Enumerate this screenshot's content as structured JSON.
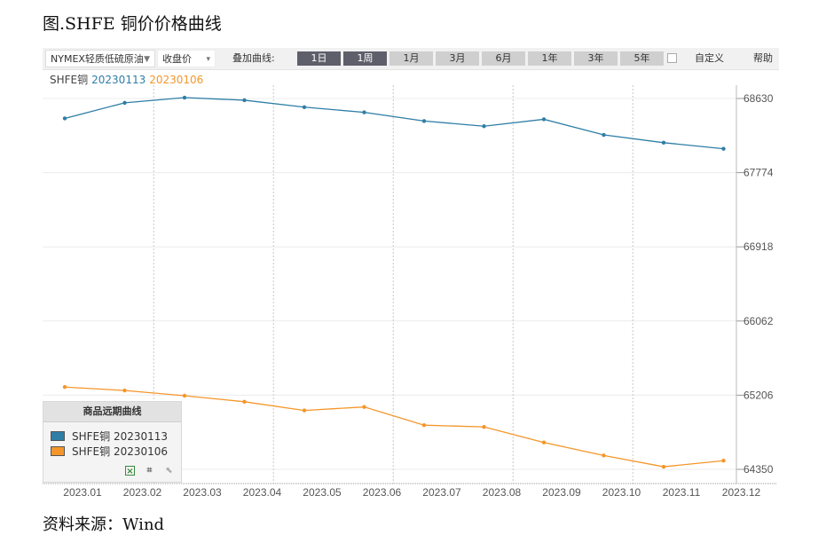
{
  "figure": {
    "title": "图.SHFE 铜价价格曲线",
    "source": "资料来源：Wind"
  },
  "toolbar": {
    "commodity": "NYMEX轻质低硫原油",
    "price_type": "收盘价",
    "overlay_label": "叠加曲线:",
    "periods": [
      "1日",
      "1周",
      "1月",
      "3月",
      "6月",
      "1年",
      "3年",
      "5年"
    ],
    "active_periods": [
      "1日",
      "1周"
    ],
    "custom_label": "自定义",
    "help_label": "帮助"
  },
  "legend_top": {
    "prefix": "SHFE铜",
    "series1": "20230113",
    "series2": "20230106"
  },
  "legend_box": {
    "title": "商品远期曲线",
    "items": [
      "SHFE铜 20230113",
      "SHFE铜 20230106"
    ],
    "icons": [
      "excel-icon",
      "crop-icon",
      "cursor-icon"
    ]
  },
  "colors": {
    "series1": "#2e7ea6",
    "series2": "#f5962a",
    "grid": "#ececec",
    "axis_text": "#555555"
  },
  "chart_data": {
    "type": "line",
    "title": "",
    "xlabel": "",
    "ylabel": "",
    "categories": [
      "2023.01",
      "2023.02",
      "2023.03",
      "2023.04",
      "2023.05",
      "2023.06",
      "2023.07",
      "2023.08",
      "2023.09",
      "2023.10",
      "2023.11",
      "2023.12"
    ],
    "yticks": [
      64350,
      65206,
      66062,
      66918,
      67774,
      68630
    ],
    "ylim": [
      64350,
      68630
    ],
    "grid": true,
    "legend": "top-left",
    "series": [
      {
        "name": "SHFE铜 20230113",
        "values": [
          68400,
          68580,
          68640,
          68610,
          68530,
          68470,
          68370,
          68310,
          68390,
          68210,
          68120,
          68050
        ]
      },
      {
        "name": "SHFE铜 20230106",
        "values": [
          65300,
          65260,
          65200,
          65130,
          65030,
          65070,
          64860,
          64840,
          64660,
          64510,
          64380,
          64450
        ]
      }
    ]
  }
}
